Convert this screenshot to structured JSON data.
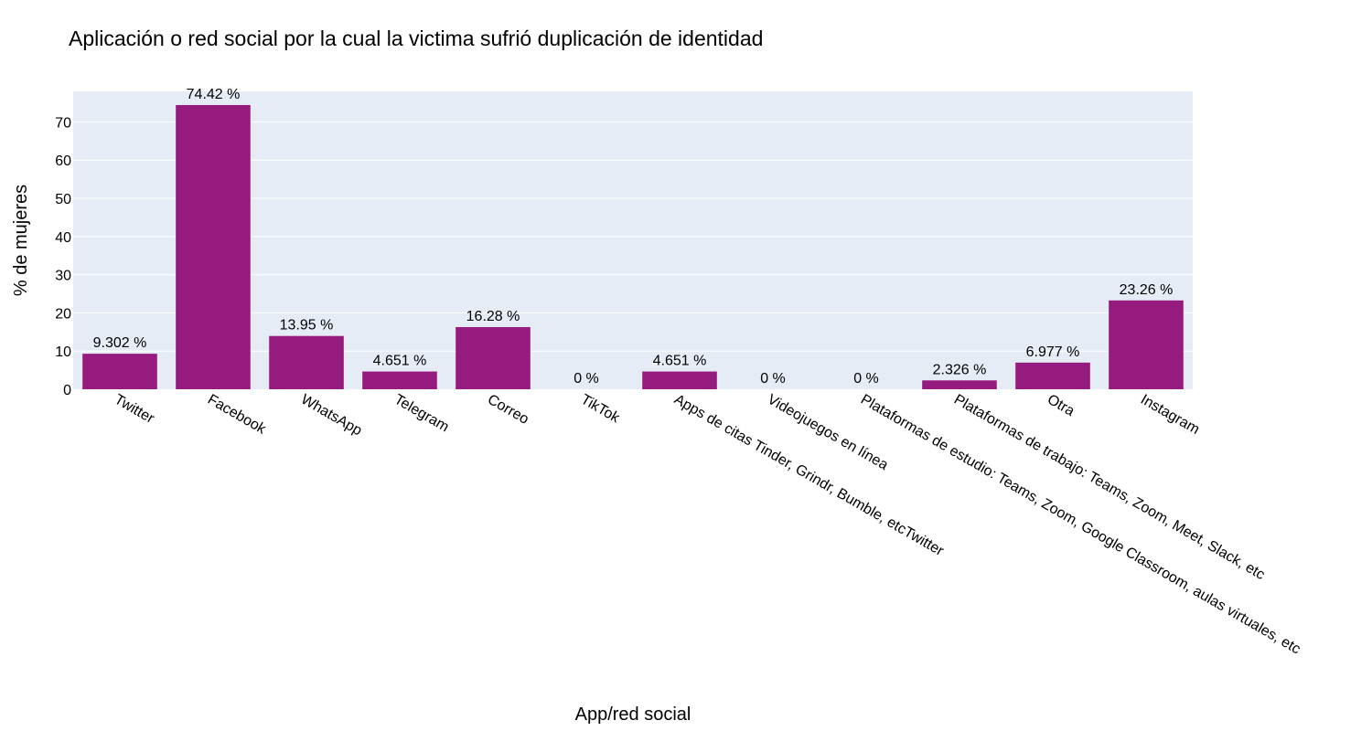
{
  "chart_data": {
    "type": "bar",
    "title": "Aplicación o red social por la cual la victima sufrió duplicación de identidad",
    "xlabel": "App/red social",
    "ylabel": "% de mujeres",
    "ylim": [
      0,
      78
    ],
    "yticks": [
      0,
      10,
      20,
      30,
      40,
      50,
      60,
      70
    ],
    "grid": true,
    "categories": [
      "Twitter",
      "Facebook",
      "WhatsApp",
      "Telegram",
      "Correo",
      "TikTok",
      "Apps de citas Tinder, Grindr, Bumble, etcTwitter",
      "Videojuegos en línea",
      "Plataformas de estudio: Teams, Zoom, Google Classroom, aulas virtuales, etc",
      "Plataformas de trabajo: Teams, Zoom, Meet, Slack, etc",
      "Otra",
      "Instagram"
    ],
    "values": [
      9.302,
      74.42,
      13.95,
      4.651,
      16.28,
      0,
      4.651,
      0,
      0,
      2.326,
      6.977,
      23.26
    ],
    "labels": [
      "9.302 %",
      "74.42 %",
      "13.95 %",
      "4.651 %",
      "16.28 %",
      "0 %",
      "4.651 %",
      "0 %",
      "0 %",
      "2.326 %",
      "6.977 %",
      "23.26 %"
    ],
    "colors": {
      "bar": "#961b7e",
      "plot_bg": "#e5ecf6",
      "grid": "#ffffff"
    }
  }
}
